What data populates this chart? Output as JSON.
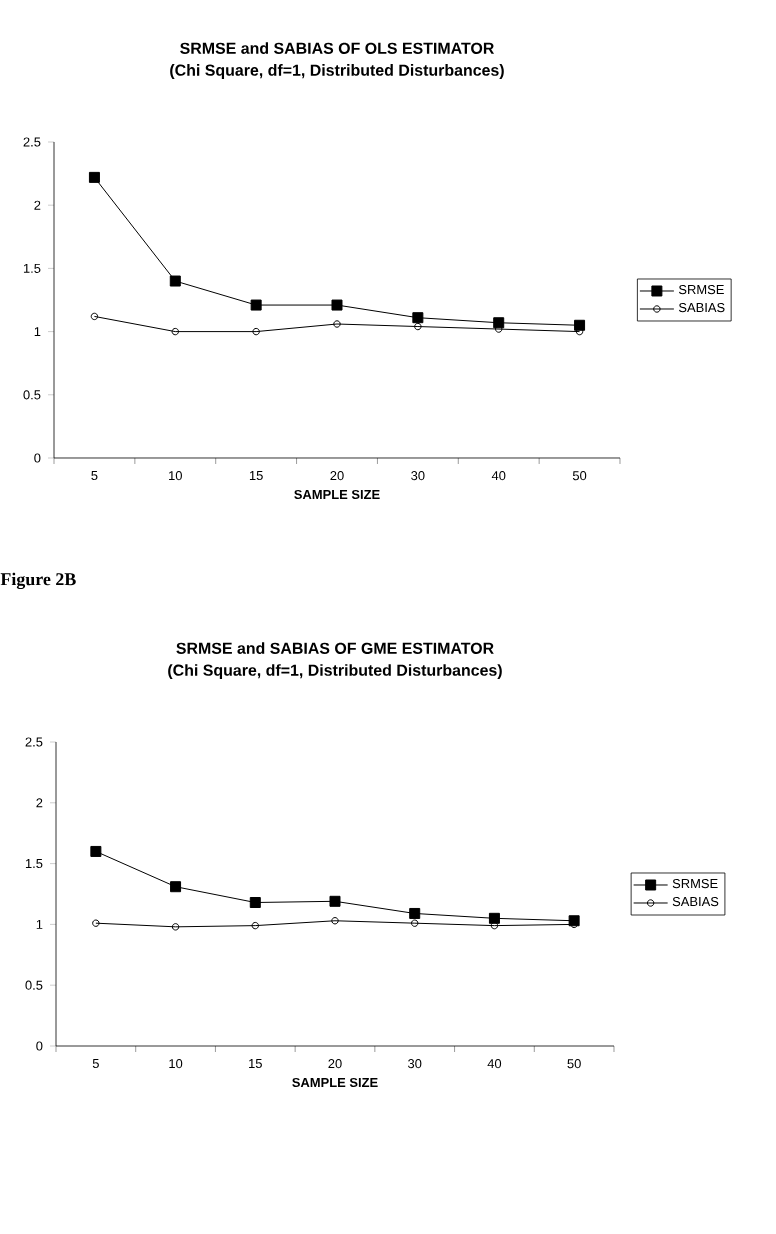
{
  "chart_data": [
    {
      "type": "line",
      "title": "SRMSE and SABIAS OF OLS ESTIMATOR",
      "subtitle": "(Chi Square, df=1, Distributed Disturbances)",
      "xlabel": "SAMPLE SIZE",
      "categories": [
        "5",
        "10",
        "15",
        "20",
        "30",
        "40",
        "50"
      ],
      "series": [
        {
          "name": "SRMSE",
          "color": "#000000",
          "marker": "square",
          "values": [
            2.22,
            1.4,
            1.21,
            1.21,
            1.11,
            1.07,
            1.05
          ]
        },
        {
          "name": "SABIAS",
          "color": "#000000",
          "marker": "circle",
          "values": [
            1.12,
            1.0,
            1.0,
            1.06,
            1.04,
            1.02,
            1.0
          ]
        }
      ],
      "ylim": [
        0,
        2.5
      ],
      "yticks": [
        0,
        0.5,
        1,
        1.5,
        2,
        2.5
      ],
      "grid": false,
      "legend": "right"
    },
    {
      "type": "line",
      "title": "SRMSE and SABIAS OF GME ESTIMATOR",
      "subtitle": "(Chi Square, df=1, Distributed Disturbances)",
      "xlabel": "SAMPLE SIZE",
      "annotations": [
        "Figure 2B"
      ],
      "categories": [
        "5",
        "10",
        "15",
        "20",
        "30",
        "40",
        "50"
      ],
      "series": [
        {
          "name": "SRMSE",
          "color": "#000000",
          "marker": "square",
          "values": [
            1.6,
            1.31,
            1.18,
            1.19,
            1.09,
            1.05,
            1.03
          ]
        },
        {
          "name": "SABIAS",
          "color": "#000000",
          "marker": "circle",
          "values": [
            1.01,
            0.98,
            0.99,
            1.03,
            1.01,
            0.99,
            1.0
          ]
        }
      ],
      "ylim": [
        0,
        2.5
      ],
      "yticks": [
        0,
        0.5,
        1,
        1.5,
        2,
        2.5
      ],
      "grid": false,
      "legend": "right"
    }
  ]
}
